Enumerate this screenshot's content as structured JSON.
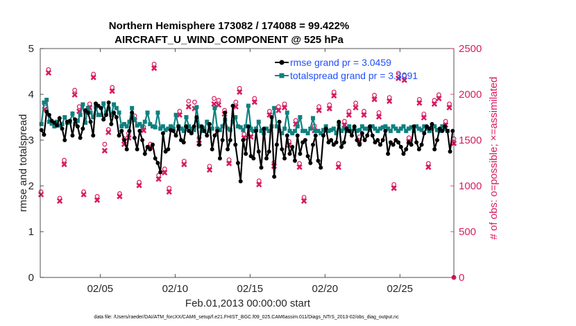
{
  "chart_data": {
    "type": "line",
    "title_line1": "Northern Hemisphere 173082 / 174088 = 99.422%",
    "title_line2": "AIRCRAFT_U_WIND_COMPONENT @ 525 hPa",
    "xlabel": "Feb.01,2013 00:00:00 start",
    "ylabel_left": "rmse and totalspread",
    "ylabel_right": "# of obs: o=possible; ×=assimilated",
    "footer": "data file: /Users/raeder/DAI/ATM_forcXX/CAM6_setup/f.e21.FHIST_BGC.f09_025.CAM6assim.011/Diags_NTrS_2013-02/obs_diag_output.nc",
    "xlim": [
      1,
      28.6
    ],
    "ylim_left": [
      0,
      5
    ],
    "ylim_right": [
      0,
      2500
    ],
    "xticks": [
      5,
      10,
      15,
      20,
      25
    ],
    "xtick_labels": [
      "02/05",
      "02/10",
      "02/15",
      "02/20",
      "02/25"
    ],
    "yticks_left": [
      0,
      1,
      2,
      3,
      4,
      5
    ],
    "yticks_right": [
      0,
      500,
      1000,
      1500,
      2000,
      2500
    ],
    "colors": {
      "rmse": "#000000",
      "spread": "#0f8080",
      "obs": "#d81b60",
      "legend_text": "#1f4fff"
    },
    "series": [
      {
        "name": "rmse",
        "legend": "rmse grand pr = 3.0459",
        "values": [
          3.22,
          3.12,
          3.62,
          3.55,
          3.42,
          3.38,
          3.32,
          3.48,
          3.25,
          3.0,
          3.4,
          3.42,
          3.1,
          3.45,
          3.3,
          3.05,
          3.25,
          3.65,
          3.6,
          3.4,
          3.1,
          3.8,
          3.75,
          3.7,
          3.45,
          3.55,
          3.82,
          3.35,
          3.6,
          3.5,
          3.1,
          3.2,
          3.0,
          2.8,
          3.2,
          3.6,
          3.05,
          2.8,
          3.2,
          3.0,
          2.7,
          2.85,
          2.8,
          2.9,
          2.6,
          2.5,
          2.3,
          3.15,
          2.75,
          2.8,
          3.22,
          3.2,
          3.1,
          3.3,
          3.0,
          2.95,
          3.3,
          3.2,
          3.15,
          3.3,
          3.5,
          2.9,
          3.3,
          3.2,
          3.1,
          3.35,
          2.8,
          3.1,
          3.2,
          2.6,
          3.0,
          3.6,
          2.8,
          3.0,
          3.75,
          2.9,
          2.5,
          2.1,
          3.0,
          2.7,
          3.3,
          2.65,
          2.6,
          3.2,
          2.75,
          2.4,
          3.25,
          2.6,
          2.75,
          3.5,
          2.2,
          2.9,
          3.4,
          2.8,
          2.6,
          3.1,
          2.7,
          2.85,
          2.55,
          3.1,
          2.7,
          2.95,
          3.0,
          2.65,
          2.5,
          2.9,
          3.1,
          2.55,
          2.4,
          3.1,
          3.25,
          2.95,
          3.0,
          2.9,
          2.95,
          3.4,
          2.85,
          2.95,
          3.25,
          3.2,
          3.1,
          3.3,
          3.0,
          2.9,
          3.15,
          3.0,
          3.1,
          3.3,
          3.1,
          2.95,
          3.0,
          2.9,
          3.0,
          3.2,
          2.7,
          2.95,
          2.9,
          3.0,
          2.95,
          2.85,
          2.7,
          2.8,
          2.95,
          2.9,
          3.3,
          2.95,
          2.8,
          2.9,
          3.15,
          3.3,
          3.25,
          3.35,
          2.8,
          3.0,
          3.25,
          3.2,
          3.3,
          3.2,
          2.75,
          3.2
        ]
      },
      {
        "name": "totalspread",
        "legend": "totalspread grand pr = 3.3091",
        "values": [
          3.35,
          3.82,
          3.88,
          3.4,
          3.36,
          3.3,
          3.4,
          3.32,
          3.35,
          3.5,
          3.38,
          3.4,
          3.58,
          3.35,
          3.42,
          3.55,
          3.78,
          3.38,
          3.7,
          3.6,
          3.5,
          3.72,
          3.55,
          3.55,
          3.8,
          3.6,
          3.68,
          3.55,
          3.78,
          3.7,
          3.6,
          3.3,
          3.35,
          3.3,
          3.4,
          3.7,
          3.45,
          3.32,
          3.35,
          3.3,
          3.4,
          3.6,
          3.35,
          3.3,
          3.28,
          3.6,
          3.25,
          3.3,
          3.22,
          3.25,
          3.3,
          3.25,
          3.55,
          3.3,
          3.25,
          3.2,
          3.5,
          3.3,
          3.25,
          3.22,
          3.72,
          3.3,
          3.2,
          3.25,
          3.4,
          3.2,
          3.25,
          3.7,
          3.25,
          3.22,
          3.3,
          3.45,
          3.25,
          3.22,
          3.4,
          3.5,
          3.3,
          3.28,
          3.22,
          3.3,
          3.75,
          3.25,
          3.2,
          3.25,
          3.4,
          3.2,
          3.15,
          3.25,
          3.2,
          3.3,
          3.7,
          3.3,
          3.2,
          3.15,
          3.25,
          3.6,
          3.2,
          3.15,
          3.2,
          3.3,
          3.5,
          3.2,
          3.2,
          3.15,
          3.25,
          3.48,
          3.2,
          3.2,
          3.15,
          3.22,
          3.3,
          3.2,
          3.22,
          3.25,
          3.15,
          3.35,
          3.2,
          3.25,
          3.2,
          3.3,
          3.2,
          3.25,
          3.2,
          3.22,
          3.3,
          3.25,
          3.25,
          3.22,
          3.3,
          3.25,
          3.2,
          3.25,
          3.28,
          3.3,
          3.25,
          3.2,
          3.3,
          3.25,
          3.2,
          3.25,
          3.3,
          3.2,
          3.25,
          3.28,
          3.2,
          3.3,
          3.25,
          3.22,
          3.3,
          3.25,
          3.2,
          3.25,
          3.3,
          3.22,
          3.2,
          3.3,
          3.25,
          3.2
        ]
      },
      {
        "name": "obs_possible",
        "x": [
          1.05,
          1.3,
          1.55,
          2.3,
          2.6,
          3.3,
          3.6,
          3.9,
          4.3,
          4.55,
          4.8,
          5.3,
          5.55,
          5.8,
          6.3,
          6.6,
          6.9,
          7.3,
          7.6,
          7.9,
          8.35,
          8.6,
          8.9,
          9.3,
          9.6,
          10.3,
          10.6,
          10.9,
          11.3,
          11.6,
          12.3,
          12.6,
          12.9,
          13.3,
          13.6,
          14.05,
          14.3,
          14.6,
          15.05,
          15.3,
          15.6,
          16.3,
          16.6,
          16.9,
          17.3,
          17.6,
          18.05,
          18.3,
          18.6,
          19.3,
          19.6,
          20.3,
          20.6,
          20.9,
          21.3,
          21.6,
          22.05,
          22.3,
          22.6,
          23.3,
          23.6,
          24.3,
          24.6,
          24.9,
          25.3,
          25.6,
          26.3,
          26.6,
          26.9,
          27.3,
          27.6,
          28.05,
          28.3,
          28.6
        ],
        "values": [
          920,
          1880,
          2255,
          850,
          1265,
          2030,
          1850,
          920,
          1880,
          2205,
          870,
          1440,
          1600,
          2060,
          900,
          1500,
          1560,
          1750,
          1025,
          1630,
          1440,
          2315,
          1100,
          1170,
          960,
          1800,
          1255,
          1910,
          1900,
          1510,
          1200,
          1940,
          1920,
          1810,
          1270,
          1900,
          2050,
          1550,
          1560,
          1940,
          1040,
          1800,
          1240,
          1850,
          1880,
          1470,
          1700,
          1230,
          860,
          1640,
          1850,
          1870,
          2010,
          1230,
          1690,
          1800,
          1890,
          1520,
          1800,
          1975,
          1785,
          1950,
          1000,
          2215,
          2190,
          1510,
          1930,
          1770,
          1230,
          1920,
          1980,
          1690,
          1880,
          1500
        ]
      },
      {
        "name": "obs_assimilated",
        "x": [
          1.05,
          1.3,
          1.55,
          2.3,
          2.6,
          3.3,
          3.6,
          3.9,
          4.3,
          4.55,
          4.8,
          5.3,
          5.55,
          5.8,
          6.3,
          6.6,
          6.9,
          7.3,
          7.6,
          7.9,
          8.35,
          8.6,
          8.9,
          9.3,
          9.6,
          10.3,
          10.6,
          10.9,
          11.3,
          11.6,
          12.3,
          12.6,
          12.9,
          13.3,
          13.6,
          14.05,
          14.3,
          14.6,
          15.05,
          15.3,
          15.6,
          16.3,
          16.6,
          16.9,
          17.3,
          17.6,
          18.05,
          18.3,
          18.6,
          19.3,
          19.6,
          20.3,
          20.6,
          20.9,
          21.3,
          21.6,
          22.05,
          22.3,
          22.6,
          23.3,
          23.6,
          24.3,
          24.6,
          24.9,
          25.3,
          25.6,
          26.3,
          26.6,
          26.9,
          27.3,
          27.6,
          28.05,
          28.3,
          28.6
        ],
        "values": [
          920,
          1850,
          2250,
          850,
          1250,
          2010,
          1830,
          920,
          1870,
          2200,
          860,
          1400,
          1600,
          2050,
          900,
          1470,
          1540,
          1730,
          1020,
          1620,
          1440,
          2300,
          1090,
          1160,
          950,
          1790,
          1250,
          1880,
          1860,
          1480,
          1190,
          1910,
          1900,
          1800,
          1260,
          1880,
          2040,
          1540,
          1550,
          1930,
          1030,
          1790,
          1230,
          1840,
          1870,
          1460,
          1690,
          1220,
          850,
          1620,
          1840,
          1860,
          2000,
          1220,
          1680,
          1790,
          1870,
          1500,
          1790,
          1960,
          1770,
          1940,
          990,
          2190,
          2170,
          1500,
          1920,
          1760,
          1220,
          1910,
          1970,
          1680,
          1870,
          1480
        ]
      }
    ],
    "end_marker": {
      "x": 28.6,
      "value": 0
    }
  }
}
